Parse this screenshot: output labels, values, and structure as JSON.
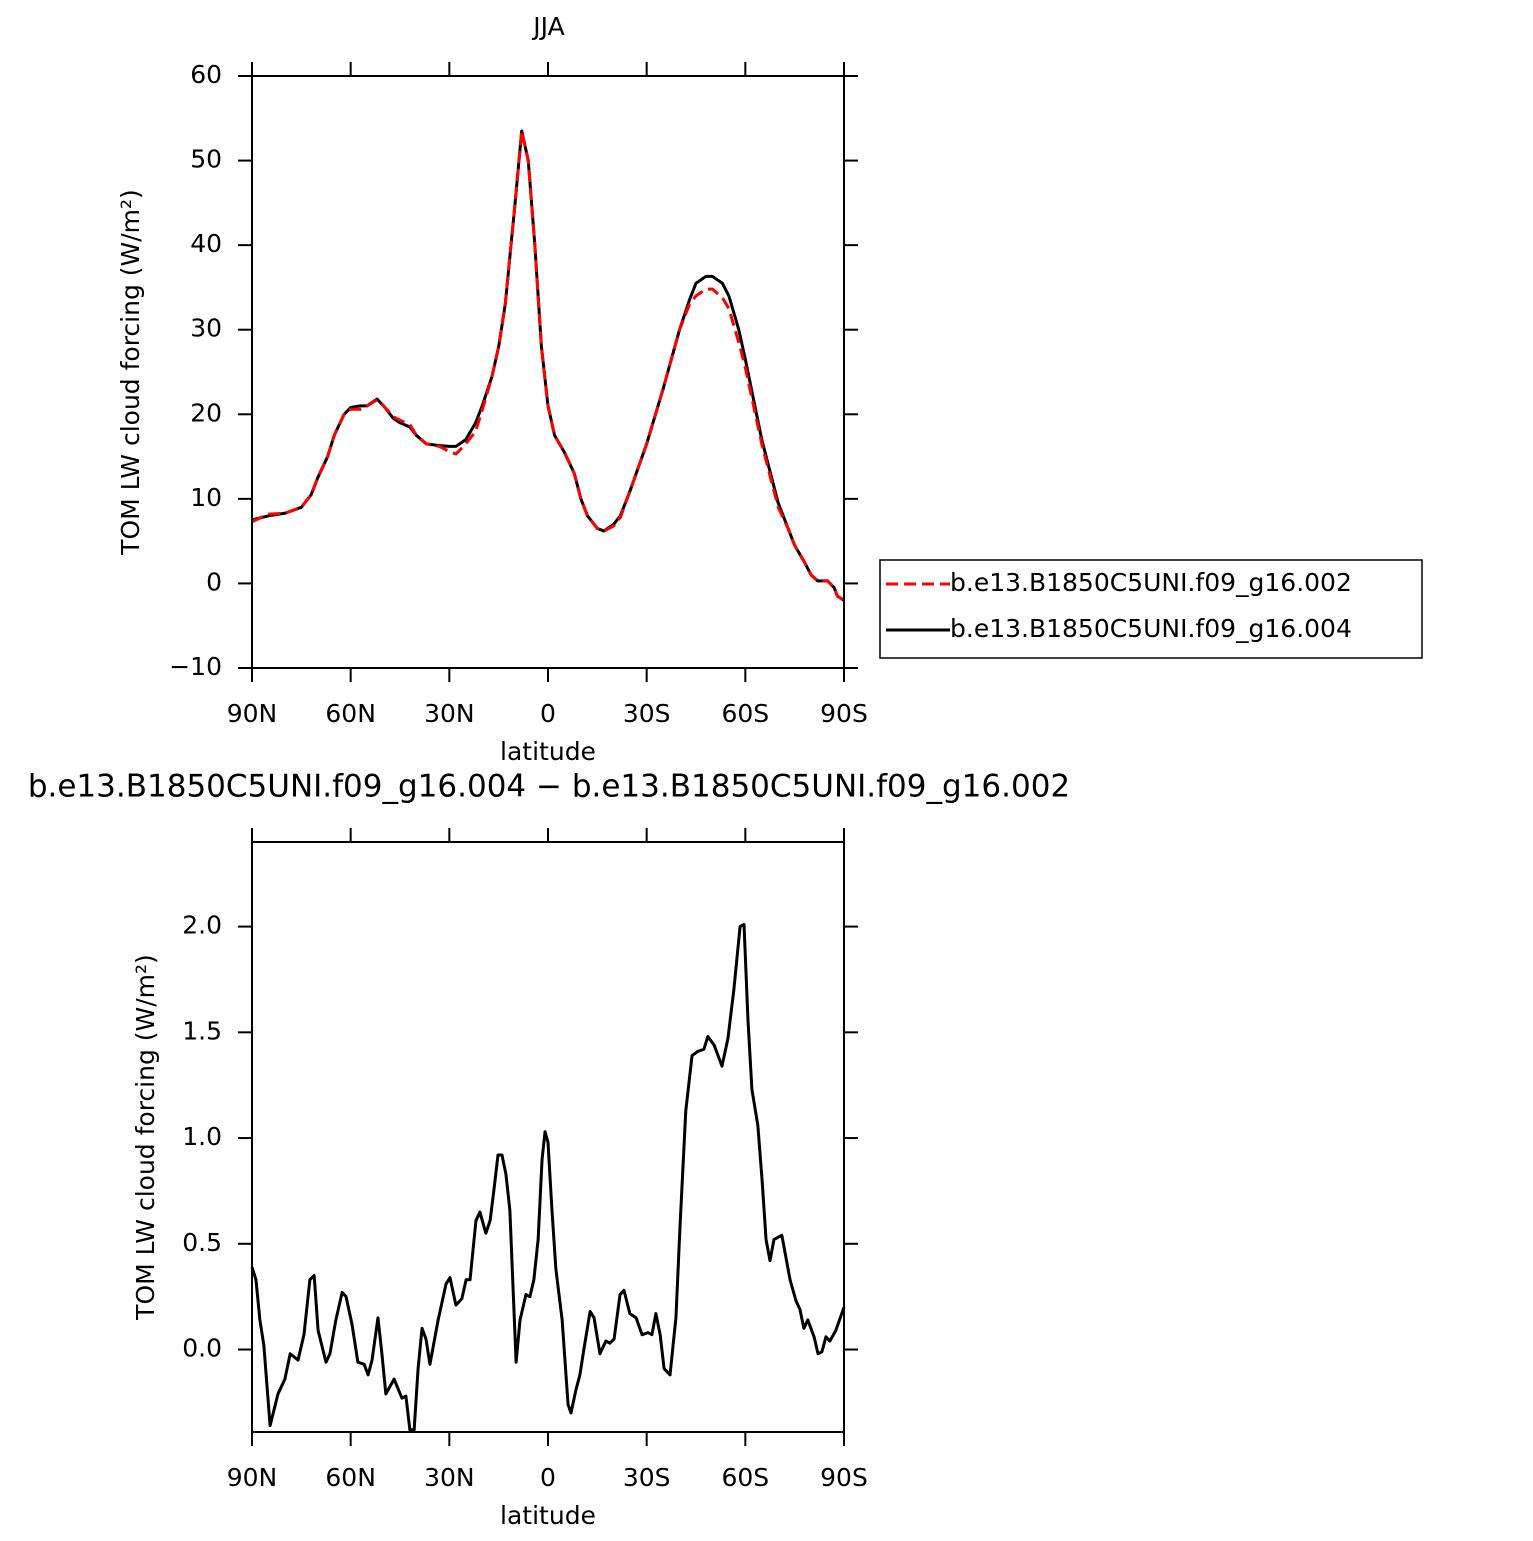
{
  "chart_data": [
    {
      "type": "line",
      "title": "JJA",
      "xlabel": "latitude",
      "ylabel": "TOM LW cloud forcing (W/m²)",
      "x": [
        90,
        85,
        80,
        75,
        72,
        70,
        67,
        65,
        62,
        60,
        57,
        55,
        52,
        50,
        47,
        45,
        42,
        40,
        37,
        33,
        30,
        28,
        25,
        22,
        20,
        17,
        15,
        13,
        10,
        8,
        6,
        4,
        2,
        0,
        -2,
        -5,
        -8,
        -10,
        -12,
        -15,
        -17,
        -20,
        -22,
        -25,
        -30,
        -35,
        -40,
        -43,
        -45,
        -48,
        -50,
        -53,
        -55,
        -58,
        -60,
        -65,
        -70,
        -73,
        -75,
        -78,
        -80,
        -82,
        -85,
        -87,
        -88,
        -90
      ],
      "series": [
        {
          "name": "b.e13.B1850C5UNI.f09_g16.002",
          "color": "#ff0000",
          "line_style": "dashed",
          "values": [
            7.3,
            8.2,
            8.3,
            9,
            10.5,
            12.5,
            15,
            17.5,
            20,
            20.6,
            20.6,
            21,
            21.7,
            21,
            19.7,
            19.3,
            18.8,
            17.5,
            16.5,
            16.2,
            15.6,
            15.3,
            16.5,
            18,
            20.5,
            24.5,
            28,
            33,
            45,
            53.5,
            50,
            40,
            28,
            21,
            17.5,
            15.5,
            13,
            10,
            8,
            6.5,
            6.2,
            6.8,
            7.8,
            11,
            16.5,
            23,
            30,
            33,
            34,
            34.8,
            34.8,
            33.8,
            32.5,
            28.5,
            25.5,
            16.5,
            9,
            6.5,
            4.5,
            2.5,
            1,
            0.3,
            0.3,
            -0.5,
            -1.5,
            -2
          ]
        },
        {
          "name": "b.e13.B1850C5UNI.f09_g16.004",
          "color": "#000000",
          "line_style": "solid",
          "values": [
            7.5,
            8,
            8.3,
            9,
            10.5,
            12.5,
            15,
            17.5,
            20,
            20.8,
            21,
            21,
            21.8,
            21,
            19.5,
            19,
            18.5,
            17.5,
            16.5,
            16.3,
            16.2,
            16.2,
            17,
            19,
            21,
            24.5,
            28,
            33,
            45,
            53.5,
            50,
            40,
            28,
            21,
            17.5,
            15.5,
            13,
            10,
            8,
            6.5,
            6.2,
            7,
            8,
            11,
            16.5,
            23,
            30,
            33.5,
            35.5,
            36.3,
            36.3,
            35.5,
            34,
            30,
            26.5,
            17,
            9.5,
            6.5,
            4.5,
            2.5,
            1,
            0.3,
            0.3,
            -0.5,
            -1.5,
            -2
          ]
        }
      ],
      "xlim": [
        90,
        -90
      ],
      "xticks": [
        {
          "value": 90,
          "label": "90N"
        },
        {
          "value": 60,
          "label": "60N"
        },
        {
          "value": 30,
          "label": "30N"
        },
        0,
        {
          "value": -30,
          "label": "30S"
        },
        {
          "value": -60,
          "label": "60S"
        },
        {
          "value": -90,
          "label": "90S"
        }
      ],
      "ylim": [
        -10,
        60
      ],
      "yticks": [
        {
          "value": -10,
          "label": "−10"
        },
        0,
        10,
        20,
        30,
        40,
        50,
        60
      ],
      "legend": "outside-right"
    },
    {
      "type": "line",
      "title": "b.e13.B1850C5UNI.f09_g16.004 − b.e13.B1850C5UNI.f09_g16.002",
      "xlabel": "latitude",
      "ylabel": "TOM LW cloud forcing (W/m²)",
      "x": [
        90,
        88.8,
        87.6,
        86.4,
        84.5,
        82.1,
        80,
        78.4,
        76,
        74.2,
        72.4,
        71.1,
        69.9,
        67.5,
        66.3,
        64.5,
        62.6,
        61.4,
        59.6,
        57.8,
        55.9,
        54.7,
        53.5,
        51.7,
        50.5,
        49.3,
        46.8,
        44.4,
        43.2,
        42,
        40.7,
        39.5,
        38.3,
        37.1,
        35.9,
        33.4,
        31,
        29.8,
        28,
        26.2,
        24.9,
        23.7,
        21.9,
        20.7,
        18.9,
        17.6,
        16.4,
        15.2,
        14,
        12.8,
        11.6,
        9.7,
        8.5,
        6.7,
        5.5,
        4.3,
        3,
        1.8,
        0.9,
        0,
        -1.2,
        -2.4,
        -4.3,
        -6.1,
        -7,
        -8.5,
        -9.7,
        -10.9,
        -12.8,
        -14,
        -15.8,
        -17.6,
        -18.8,
        -20.1,
        -21.9,
        -23.1,
        -24.9,
        -26.8,
        -28.6,
        -30.4,
        -31.6,
        -32.8,
        -34.1,
        -35.3,
        -37.1,
        -38.9,
        -40.1,
        -41.9,
        -43.8,
        -45.6,
        -47.4,
        -48.6,
        -50.5,
        -52.9,
        -54.7,
        -56.5,
        -58.4,
        -59.6,
        -60.8,
        -62,
        -63.8,
        -65.1,
        -66.3,
        -67.5,
        -68.7,
        -69.9,
        -71.1,
        -73.6,
        -75.4,
        -76.6,
        -77.8,
        -79,
        -80.9,
        -82.1,
        -83.3,
        -84.5,
        -85.7,
        -87.5,
        -90
      ],
      "values": [
        0.39,
        0.33,
        0.14,
        0.02,
        -0.36,
        -0.21,
        -0.14,
        -0.02,
        -0.05,
        0.07,
        0.33,
        0.35,
        0.09,
        -0.06,
        -0.02,
        0.14,
        0.27,
        0.25,
        0.12,
        -0.06,
        -0.07,
        -0.12,
        -0.05,
        0.15,
        -0.02,
        -0.21,
        -0.14,
        -0.23,
        -0.22,
        -0.38,
        -0.38,
        -0.09,
        0.1,
        0.05,
        -0.07,
        0.14,
        0.31,
        0.34,
        0.21,
        0.24,
        0.33,
        0.33,
        0.61,
        0.65,
        0.55,
        0.61,
        0.76,
        0.92,
        0.92,
        0.83,
        0.66,
        -0.06,
        0.14,
        0.26,
        0.25,
        0.33,
        0.52,
        0.9,
        1.03,
        0.98,
        0.66,
        0.38,
        0.14,
        -0.26,
        -0.3,
        -0.19,
        -0.12,
        0,
        0.18,
        0.15,
        -0.02,
        0.04,
        0.03,
        0.05,
        0.26,
        0.28,
        0.17,
        0.15,
        0.07,
        0.08,
        0.07,
        0.17,
        0.07,
        -0.09,
        -0.12,
        0.15,
        0.57,
        1.13,
        1.39,
        1.41,
        1.42,
        1.48,
        1.44,
        1.34,
        1.47,
        1.7,
        2.0,
        2.01,
        1.56,
        1.23,
        1.06,
        0.8,
        0.52,
        0.42,
        0.52,
        0.53,
        0.54,
        0.33,
        0.23,
        0.19,
        0.1,
        0.14,
        0.06,
        -0.02,
        -0.01,
        0.06,
        0.04,
        0.09,
        0.2
      ],
      "color": "#000000",
      "xlim": [
        90,
        -90
      ],
      "xticks": [
        {
          "value": 90,
          "label": "90N"
        },
        {
          "value": 60,
          "label": "60N"
        },
        {
          "value": 30,
          "label": "30N"
        },
        0,
        {
          "value": -30,
          "label": "30S"
        },
        {
          "value": -60,
          "label": "60S"
        },
        {
          "value": -90,
          "label": "90S"
        }
      ],
      "ylim": [
        -0.39,
        2.4
      ],
      "yticks": [
        {
          "value": 0,
          "label": "0.0"
        },
        0.5,
        {
          "value": 1,
          "label": "1.0"
        },
        1.5,
        {
          "value": 2,
          "label": "2.0"
        }
      ]
    }
  ]
}
